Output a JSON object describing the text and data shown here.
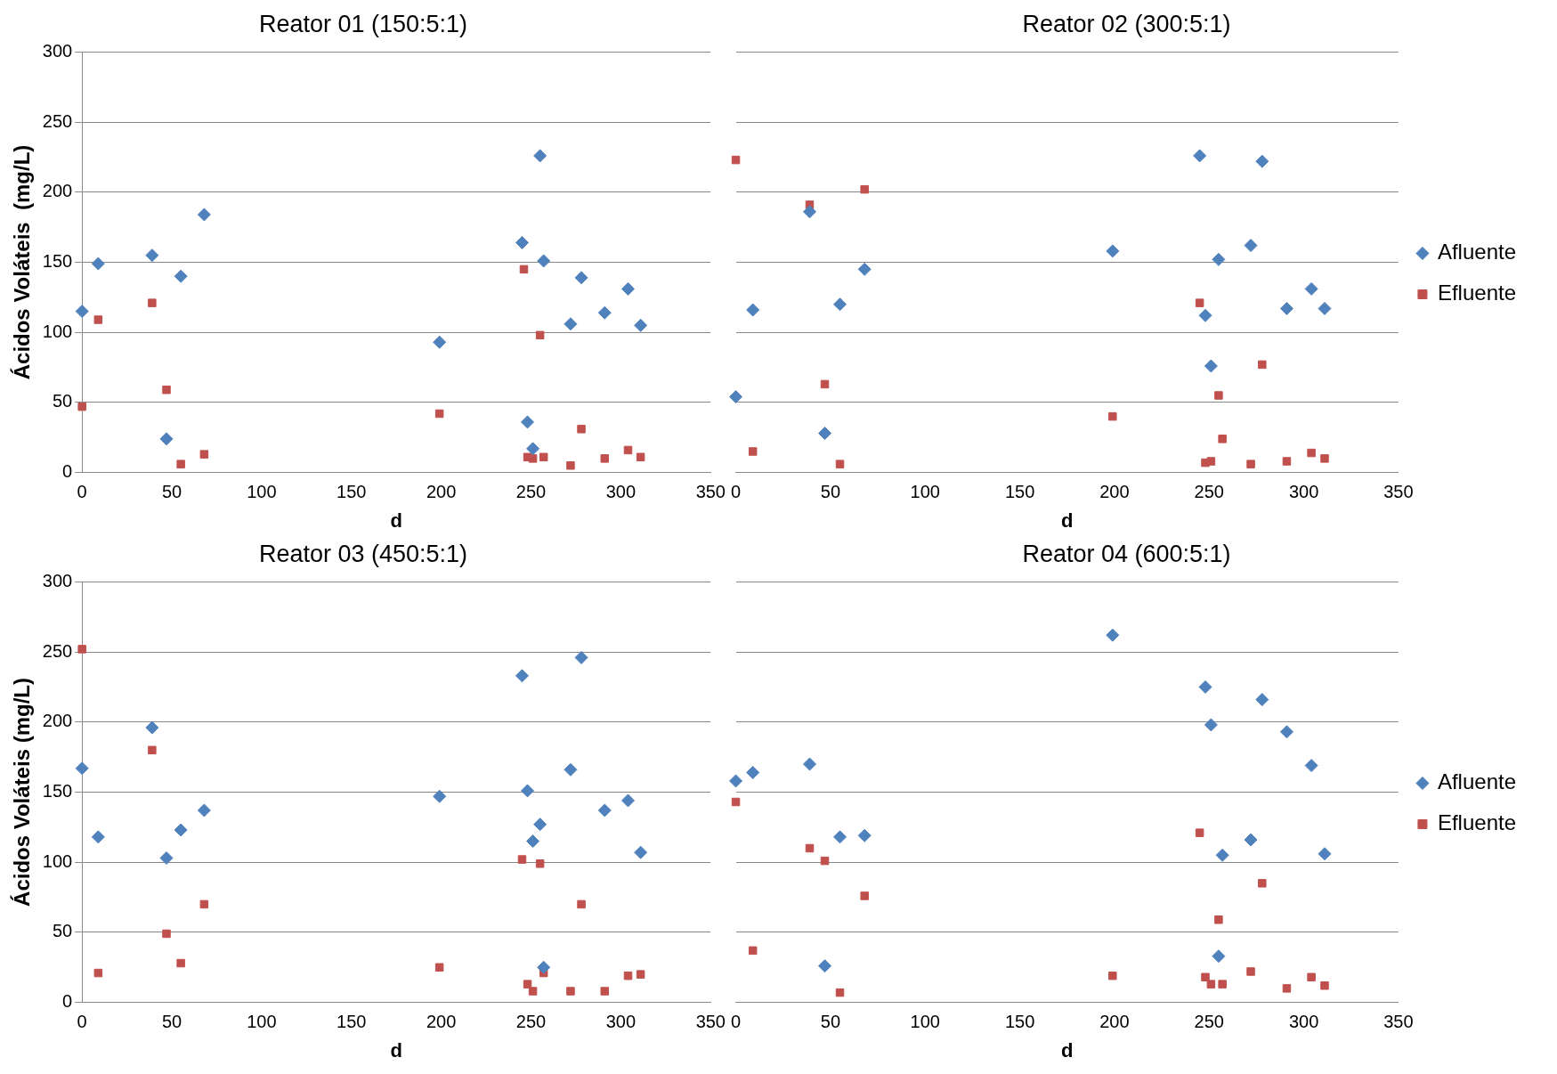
{
  "chart_data": [
    {
      "type": "scatter",
      "title": "Reator 01 (150:5:1)",
      "xlabel": "d",
      "ylabel": "Ácidos Voláteis  (mg/L)",
      "xlim": [
        0,
        350
      ],
      "xticks": [
        0,
        50,
        100,
        150,
        200,
        250,
        300,
        350
      ],
      "ylim": [
        0,
        300
      ],
      "yticks": [
        0,
        50,
        100,
        150,
        200,
        250,
        300
      ],
      "grid": "y",
      "legend": false,
      "series": [
        {
          "color": "#4f81bd",
          "marker": "diamond",
          "x": [
            0,
            9,
            39,
            55,
            68,
            47,
            199,
            245,
            255,
            248,
            251,
            257,
            272,
            278,
            291,
            304,
            311
          ],
          "values": [
            115,
            149,
            155,
            140,
            184,
            24,
            93,
            164,
            226,
            36,
            17,
            151,
            106,
            139,
            114,
            131,
            105
          ]
        },
        {
          "color": "#c0504d",
          "marker": "square",
          "x": [
            0,
            9,
            39,
            47,
            55,
            68,
            199,
            246,
            248,
            251,
            255,
            257,
            272,
            278,
            291,
            304,
            311
          ],
          "values": [
            47,
            109,
            121,
            59,
            6,
            13,
            42,
            145,
            11,
            10,
            98,
            11,
            5,
            31,
            10,
            16,
            11
          ]
        }
      ]
    },
    {
      "type": "scatter",
      "title": "Reator 02 (300:5:1)",
      "xlabel": "d",
      "xlim": [
        0,
        350
      ],
      "xticks": [
        0,
        50,
        100,
        150,
        200,
        250,
        300,
        350
      ],
      "ylim": [
        0,
        300
      ],
      "yticks": [
        0,
        50,
        100,
        150,
        200,
        250,
        300
      ],
      "grid": "y",
      "legend": "right",
      "tick_labels": "x",
      "series": [
        {
          "name": "Afluente",
          "color": "#4f81bd",
          "marker": "diamond",
          "x": [
            0,
            9,
            39,
            47,
            55,
            68,
            199,
            245,
            248,
            251,
            255,
            272,
            278,
            291,
            304,
            311
          ],
          "values": [
            54,
            116,
            186,
            28,
            120,
            145,
            158,
            226,
            112,
            76,
            152,
            162,
            222,
            117,
            131,
            117
          ]
        },
        {
          "name": "Efluente",
          "color": "#c0504d",
          "marker": "square",
          "x": [
            0,
            9,
            39,
            47,
            55,
            68,
            199,
            245,
            248,
            251,
            255,
            257,
            272,
            278,
            291,
            304,
            311
          ],
          "values": [
            223,
            15,
            191,
            63,
            6,
            202,
            40,
            121,
            7,
            8,
            55,
            24,
            6,
            77,
            8,
            14,
            10
          ]
        }
      ]
    },
    {
      "type": "scatter",
      "title": "Reator 03 (450:5:1)",
      "xlabel": "d",
      "ylabel": "Ácidos Voláteis (mg/L)",
      "xlim": [
        0,
        350
      ],
      "xticks": [
        0,
        50,
        100,
        150,
        200,
        250,
        300,
        350
      ],
      "ylim": [
        0,
        300
      ],
      "yticks": [
        0,
        50,
        100,
        150,
        200,
        250,
        300
      ],
      "grid": "y",
      "legend": false,
      "series": [
        {
          "color": "#4f81bd",
          "marker": "diamond",
          "x": [
            0,
            9,
            39,
            47,
            55,
            68,
            199,
            245,
            248,
            251,
            255,
            257,
            272,
            278,
            291,
            304,
            311
          ],
          "values": [
            167,
            118,
            196,
            103,
            123,
            137,
            147,
            233,
            151,
            115,
            127,
            25,
            166,
            246,
            137,
            144,
            107
          ]
        },
        {
          "color": "#c0504d",
          "marker": "square",
          "x": [
            0,
            9,
            39,
            47,
            55,
            68,
            199,
            245,
            248,
            251,
            255,
            257,
            272,
            278,
            291,
            304,
            311
          ],
          "values": [
            252,
            21,
            180,
            49,
            28,
            70,
            25,
            102,
            13,
            8,
            99,
            21,
            8,
            70,
            8,
            19,
            20
          ]
        }
      ]
    },
    {
      "type": "scatter",
      "title": "Reator 04 (600:5:1)",
      "xlabel": "d",
      "xlim": [
        0,
        350
      ],
      "xticks": [
        0,
        50,
        100,
        150,
        200,
        250,
        300,
        350
      ],
      "ylim": [
        0,
        300
      ],
      "yticks": [
        0,
        50,
        100,
        150,
        200,
        250,
        300
      ],
      "grid": "y",
      "legend": "right",
      "tick_labels": "x",
      "series": [
        {
          "name": "Afluente",
          "color": "#4f81bd",
          "marker": "diamond",
          "x": [
            0,
            9,
            39,
            47,
            55,
            68,
            199,
            248,
            251,
            257,
            255,
            272,
            278,
            291,
            304,
            311
          ],
          "values": [
            158,
            164,
            170,
            26,
            118,
            119,
            262,
            225,
            198,
            105,
            33,
            116,
            216,
            193,
            169,
            106
          ]
        },
        {
          "name": "Efluente",
          "color": "#c0504d",
          "marker": "square",
          "x": [
            0,
            9,
            39,
            47,
            55,
            68,
            199,
            245,
            248,
            251,
            255,
            257,
            272,
            278,
            291,
            304,
            311
          ],
          "values": [
            143,
            37,
            110,
            101,
            7,
            76,
            19,
            121,
            18,
            13,
            59,
            13,
            22,
            85,
            10,
            18,
            12
          ]
        }
      ]
    }
  ]
}
